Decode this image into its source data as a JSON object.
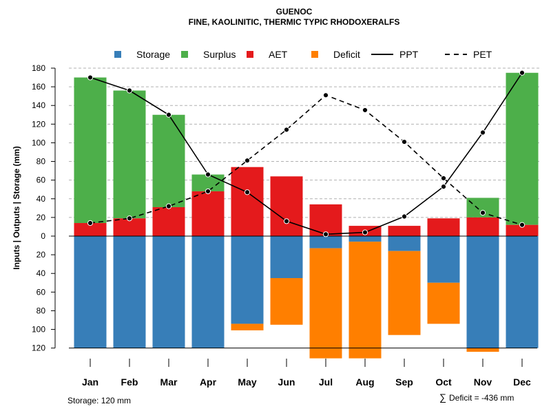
{
  "chart_data": {
    "type": "bar",
    "title": "GUENOC",
    "subtitle": "FINE, KAOLINITIC, THERMIC TYPIC RHODOXERALFS",
    "ylabel": "Inputs | Outputs | Storage    (mm)",
    "ylim": [
      -120,
      180
    ],
    "y_ticks_top": [
      "180",
      "160",
      "140",
      "120",
      "100",
      "80",
      "60",
      "40",
      "20",
      "0"
    ],
    "y_ticks_bottom": [
      "20",
      "40",
      "60",
      "80",
      "100",
      "120"
    ],
    "categories": [
      "Jan",
      "Feb",
      "Mar",
      "Apr",
      "May",
      "Jun",
      "Jul",
      "Aug",
      "Sep",
      "Oct",
      "Nov",
      "Dec"
    ],
    "series": [
      {
        "name": "AET",
        "color": "#E41A1C",
        "values": [
          14,
          19,
          31,
          48,
          74,
          64,
          34,
          11,
          11,
          19,
          20,
          12
        ]
      },
      {
        "name": "Surplus",
        "color": "#4DAF4A",
        "values": [
          156,
          137,
          99,
          18,
          0,
          0,
          0,
          0,
          0,
          0,
          21,
          163
        ]
      },
      {
        "name": "Storage",
        "color": "#377EB8",
        "values": [
          120,
          120,
          120,
          120,
          94,
          45,
          13,
          6,
          16,
          50,
          120,
          120
        ]
      },
      {
        "name": "Deficit",
        "color": "#FF7F00",
        "values": [
          0,
          0,
          0,
          0,
          7,
          50,
          118,
          125,
          90,
          44,
          4,
          0
        ]
      },
      {
        "name": "PPT",
        "style": "solid",
        "values": [
          170,
          156,
          130,
          66,
          47,
          16,
          2,
          4,
          21,
          53,
          111,
          175
        ]
      },
      {
        "name": "PET",
        "style": "dashed",
        "values": [
          14,
          19,
          32,
          48,
          81,
          114,
          151,
          135,
          101,
          62,
          25,
          12
        ]
      }
    ],
    "legend": {
      "position": "top",
      "items": [
        {
          "label": "Storage",
          "kind": "box",
          "color": "#377EB8"
        },
        {
          "label": "Surplus",
          "kind": "box",
          "color": "#4DAF4A"
        },
        {
          "label": "AET",
          "kind": "box",
          "color": "#E41A1C"
        },
        {
          "label": "Deficit",
          "kind": "box",
          "color": "#FF7F00"
        },
        {
          "label": "PPT",
          "kind": "solid-line",
          "color": "#000000"
        },
        {
          "label": "PET",
          "kind": "dashed-line",
          "color": "#000000"
        }
      ]
    },
    "grid": true
  },
  "footer": {
    "storage_note": "Storage: 120 mm",
    "deficit_symbol": "∑",
    "deficit_note": "Deficit = -436 mm"
  }
}
